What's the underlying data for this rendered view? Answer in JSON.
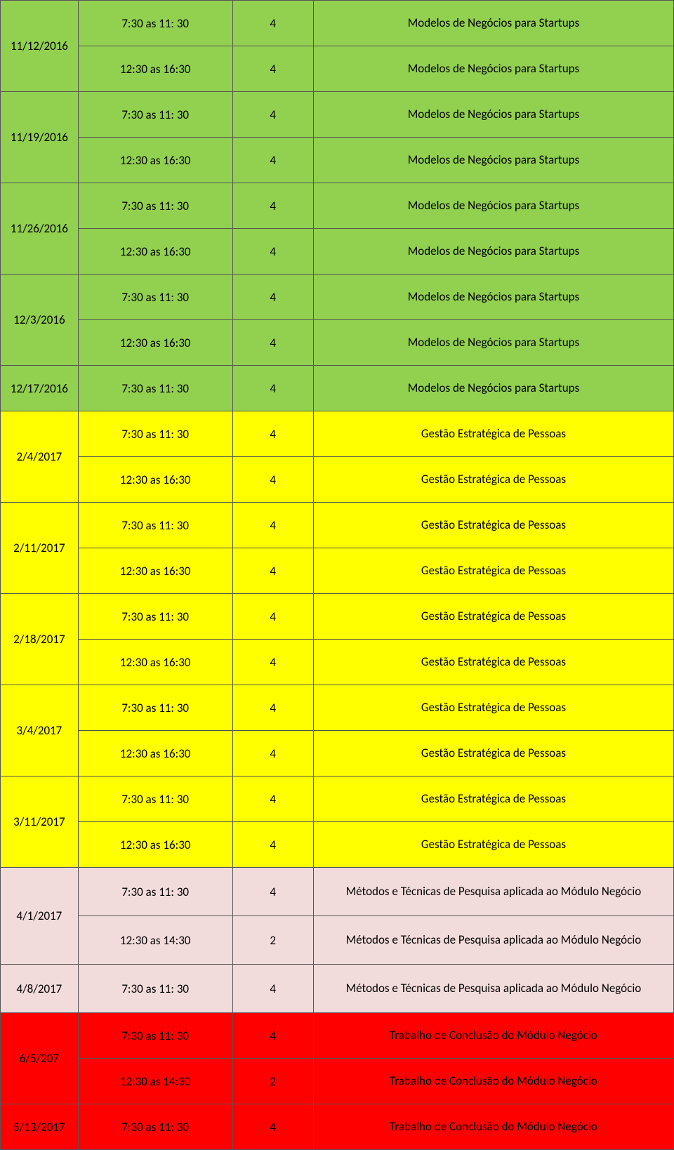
{
  "colors": {
    "green": "#92d050",
    "yellow": "#ffff00",
    "pink": "#f2dcdb",
    "red": "#ff0000",
    "border": "#555555",
    "text": "#000000"
  },
  "time_morning": "7:30 as 11: 30",
  "time_afternoon": "12:30 as 16:30",
  "time_1430": "12:30 as 14:30",
  "hrs4": "4",
  "hrs2": "2",
  "topics": {
    "startups": "Modelos de Negócios para Startups",
    "pessoas": "Gestão Estratégica de Pessoas",
    "metodos": "Métodos e Técnicas de Pesquisa aplicada ao Módulo Negócio",
    "tcc": "Trabalho de Conclusão do Módulo Negócio"
  },
  "rows": [
    {
      "date": "11/12/2016",
      "slots": [
        {
          "t": "m",
          "h": "4",
          "topic": "startups"
        },
        {
          "t": "a",
          "h": "4",
          "topic": "startups"
        }
      ],
      "color": "green"
    },
    {
      "date": "11/19/2016",
      "slots": [
        {
          "t": "m",
          "h": "4",
          "topic": "startups"
        },
        {
          "t": "a",
          "h": "4",
          "topic": "startups"
        }
      ],
      "color": "green"
    },
    {
      "date": "11/26/2016",
      "slots": [
        {
          "t": "m",
          "h": "4",
          "topic": "startups"
        },
        {
          "t": "a",
          "h": "4",
          "topic": "startups"
        }
      ],
      "color": "green"
    },
    {
      "date": "12/3/2016",
      "slots": [
        {
          "t": "m",
          "h": "4",
          "topic": "startups"
        },
        {
          "t": "a",
          "h": "4",
          "topic": "startups"
        }
      ],
      "color": "green"
    },
    {
      "date": "12/17/2016",
      "slots": [
        {
          "t": "m",
          "h": "4",
          "topic": "startups"
        }
      ],
      "color": "green"
    },
    {
      "date": "2/4/2017",
      "slots": [
        {
          "t": "m",
          "h": "4",
          "topic": "pessoas"
        },
        {
          "t": "a",
          "h": "4",
          "topic": "pessoas"
        }
      ],
      "color": "yellow"
    },
    {
      "date": "2/11/2017",
      "slots": [
        {
          "t": "m",
          "h": "4",
          "topic": "pessoas"
        },
        {
          "t": "a",
          "h": "4",
          "topic": "pessoas"
        }
      ],
      "color": "yellow"
    },
    {
      "date": "2/18/2017",
      "slots": [
        {
          "t": "m",
          "h": "4",
          "topic": "pessoas"
        },
        {
          "t": "a",
          "h": "4",
          "topic": "pessoas"
        }
      ],
      "color": "yellow"
    },
    {
      "date": "3/4/2017",
      "slots": [
        {
          "t": "m",
          "h": "4",
          "topic": "pessoas"
        },
        {
          "t": "a",
          "h": "4",
          "topic": "pessoas"
        }
      ],
      "color": "yellow"
    },
    {
      "date": "3/11/2017",
      "slots": [
        {
          "t": "m",
          "h": "4",
          "topic": "pessoas"
        },
        {
          "t": "a",
          "h": "4",
          "topic": "pessoas"
        }
      ],
      "color": "yellow"
    },
    {
      "date": "4/1/2017",
      "slots": [
        {
          "t": "m",
          "h": "4",
          "topic": "metodos"
        },
        {
          "t": "t1430",
          "h": "2",
          "topic": "metodos"
        }
      ],
      "color": "pink",
      "tall": true
    },
    {
      "date": "4/8/2017",
      "slots": [
        {
          "t": "m",
          "h": "4",
          "topic": "metodos"
        }
      ],
      "color": "pink",
      "tall": true
    },
    {
      "date": "6/5/207",
      "slots": [
        {
          "t": "m",
          "h": "4",
          "topic": "tcc"
        },
        {
          "t": "t1430",
          "h": "2",
          "topic": "tcc"
        }
      ],
      "color": "red"
    },
    {
      "date": "5/13/2017",
      "slots": [
        {
          "t": "m",
          "h": "4",
          "topic": "tcc"
        }
      ],
      "color": "red"
    }
  ]
}
